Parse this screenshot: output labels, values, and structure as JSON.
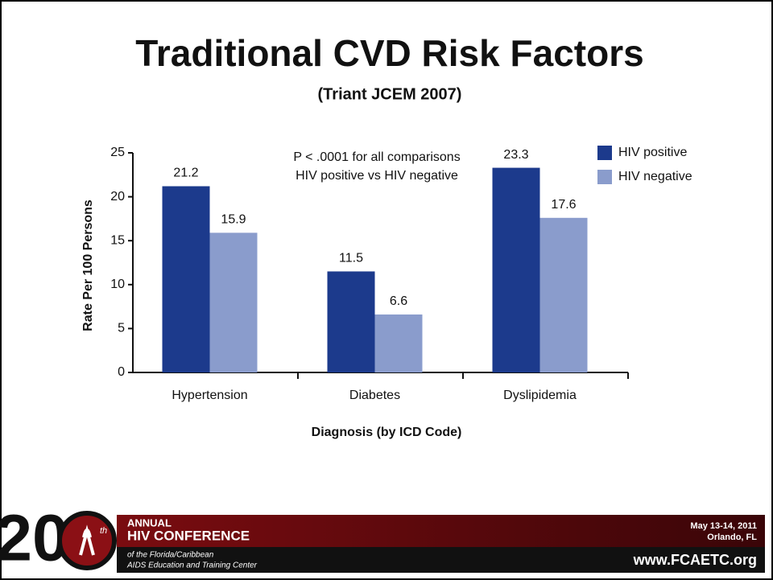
{
  "chart_data": {
    "type": "bar",
    "title": "Traditional CVD Risk Factors",
    "subtitle": "(Triant JCEM 2007)",
    "annotation": [
      "P < .0001 for all comparisons",
      "HIV positive vs HIV negative"
    ],
    "y_label": "Rate Per 100 Persons",
    "x_label": "Diagnosis (by ICD Code)",
    "categories": [
      "Hypertension",
      "Diabetes",
      "Dyslipidemia"
    ],
    "series": [
      {
        "name": "HIV positive",
        "color": "#1c3a8c",
        "values": [
          21.2,
          11.5,
          23.3
        ]
      },
      {
        "name": "HIV negative",
        "color": "#8a9ccc",
        "values": [
          15.9,
          6.6,
          17.6
        ]
      }
    ],
    "ylim": [
      0,
      25
    ],
    "yticks": [
      0,
      5,
      10,
      15,
      20,
      25
    ],
    "legend": "upper right",
    "grid": false
  },
  "footer": {
    "logo_number": "20",
    "logo_suffix": "th",
    "line1": "ANNUAL",
    "line2": "HIV CONFERENCE",
    "line3": "of the Florida/Caribbean",
    "line4": "AIDS Education and Training Center",
    "date": "May 13-14, 2011",
    "place": "Orlando, FL",
    "url": "www.FCAETC.org"
  }
}
